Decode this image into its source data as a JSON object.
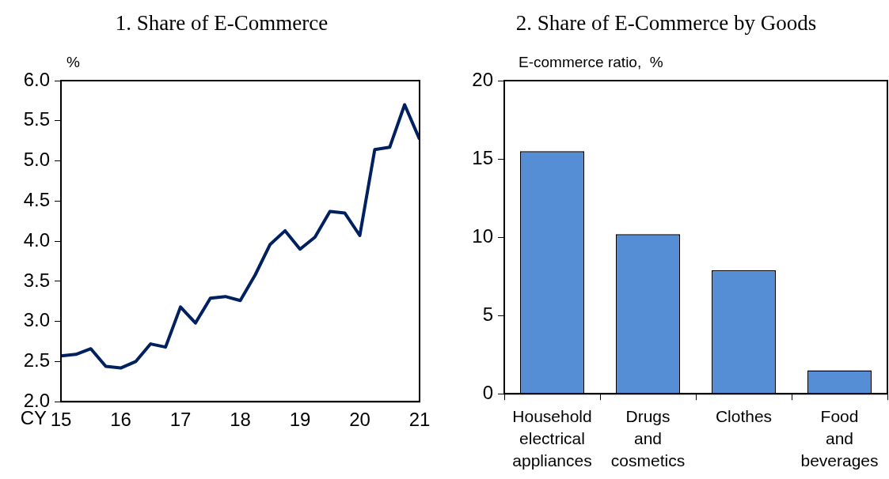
{
  "chart_data": [
    {
      "type": "line",
      "title": "1. Share of E-Commerce",
      "ylabel": "%",
      "xlabel": "CY",
      "x": [
        15,
        15.25,
        15.5,
        15.75,
        16,
        16.25,
        16.5,
        16.75,
        17,
        17.25,
        17.5,
        17.75,
        18,
        18.25,
        18.5,
        18.75,
        19,
        19.25,
        19.5,
        19.75,
        20,
        20.25,
        20.5,
        20.75,
        21
      ],
      "series": [
        {
          "color": "#002060",
          "values": [
            2.57,
            2.59,
            2.66,
            2.44,
            2.42,
            2.5,
            2.72,
            2.68,
            3.18,
            2.98,
            3.29,
            3.31,
            3.26,
            3.58,
            3.96,
            4.13,
            3.9,
            4.05,
            4.37,
            4.35,
            4.07,
            5.14,
            5.17,
            5.7,
            5.27
          ]
        }
      ],
      "xlim": [
        15,
        21
      ],
      "xticks": [
        15,
        16,
        17,
        18,
        19,
        20,
        21
      ],
      "ylim": [
        2,
        6
      ],
      "yticks": [
        {
          "value": 2,
          "label": "2.0"
        },
        2.5,
        {
          "value": 3,
          "label": "3.0"
        },
        3.5,
        {
          "value": 4,
          "label": "4.0"
        },
        4.5,
        {
          "value": 5,
          "label": "5.0"
        },
        5.5,
        {
          "value": 6,
          "label": "6.0"
        }
      ],
      "grid": false,
      "legend": false,
      "marker": "none",
      "line_style": "solid"
    },
    {
      "type": "bar",
      "title": "2. Share of E-Commerce by Goods",
      "ylabel": "E-commerce ratio,  %",
      "categories": [
        "Household electrical appliances",
        "Drugs and cosmetics",
        "Clothes",
        "Food and beverages"
      ],
      "series": [
        {
          "color": "#558ed5",
          "values": [
            15.5,
            10.2,
            7.9,
            1.5
          ]
        }
      ],
      "ylim": [
        0,
        20
      ],
      "yticks": [
        0,
        5,
        10,
        15,
        20
      ],
      "grid": false,
      "legend": false
    }
  ]
}
